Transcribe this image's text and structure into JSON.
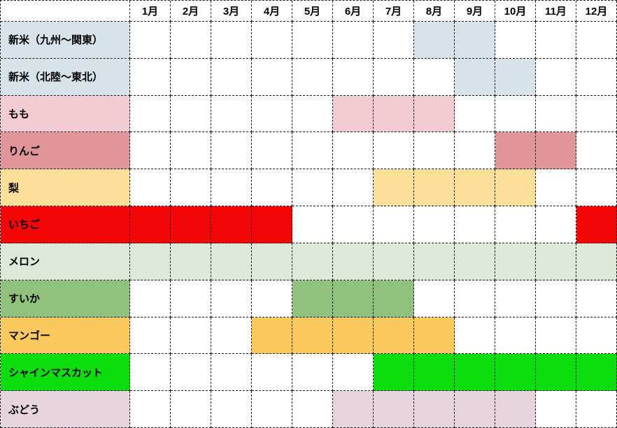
{
  "chart_data": {
    "type": "heatmap",
    "title": "",
    "description_semantic": "seasonal-availability-calendar",
    "corner_label": "",
    "categories": [
      "1月",
      "2月",
      "3月",
      "4月",
      "5月",
      "6月",
      "7月",
      "8月",
      "9月",
      "10月",
      "11月",
      "12月"
    ],
    "grid": true,
    "grid_line_color": "#1a1a1a",
    "background_color": "#ffffff",
    "rows": [
      {
        "label": "新米（九州〜関東）",
        "color": "#d8e3e9",
        "months": [
          8,
          9
        ]
      },
      {
        "label": "新米（北陸〜東北）",
        "color": "#d8e3e9",
        "months": [
          9,
          10
        ]
      },
      {
        "label": "もも",
        "color": "#f3cbd2",
        "months": [
          6,
          7,
          8
        ]
      },
      {
        "label": "りんご",
        "color": "#e09599",
        "months": [
          10,
          11
        ]
      },
      {
        "label": "梨",
        "color": "#fce09a",
        "months": [
          7,
          8,
          9,
          10
        ]
      },
      {
        "label": "いちご",
        "color": "#f40606",
        "months": [
          1,
          2,
          3,
          4,
          12
        ]
      },
      {
        "label": "メロン",
        "color": "#dde8d8",
        "months": [
          1,
          2,
          3,
          4,
          5,
          6,
          7,
          8,
          9,
          10,
          11,
          12
        ]
      },
      {
        "label": "すいか",
        "color": "#90c17d",
        "months": [
          5,
          6,
          7
        ]
      },
      {
        "label": "マンゴー",
        "color": "#fcc95f",
        "months": [
          4,
          5,
          6,
          7,
          8
        ]
      },
      {
        "label": "シャインマスカット",
        "color": "#0cdd0c",
        "months": [
          7,
          8,
          9,
          10,
          11,
          12
        ]
      },
      {
        "label": "ぶどう",
        "color": "#e7d3dc",
        "months": [
          6,
          7,
          8,
          9,
          10
        ]
      }
    ]
  }
}
